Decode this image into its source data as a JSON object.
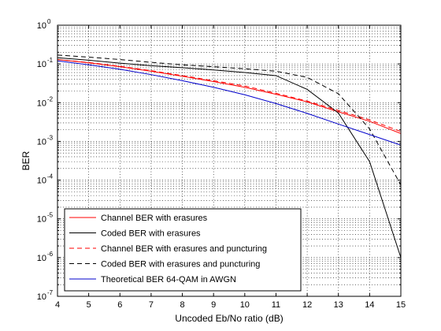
{
  "chart_data": {
    "type": "line",
    "title": "",
    "xlabel": "Uncoded Eb/No ratio (dB)",
    "ylabel": "BER",
    "xlim": [
      4,
      15
    ],
    "ylim_log10": [
      -7,
      0
    ],
    "yscale": "log",
    "grid": true,
    "legend_position": "bottom-left",
    "x_ticks": [
      "4",
      "5",
      "6",
      "7",
      "8",
      "9",
      "10",
      "11",
      "12",
      "13",
      "14",
      "15"
    ],
    "y_ticks": [
      {
        "base": "10",
        "exp": "0",
        "value": 1
      },
      {
        "base": "10",
        "exp": "-1",
        "value": 0.1
      },
      {
        "base": "10",
        "exp": "-2",
        "value": 0.01
      },
      {
        "base": "10",
        "exp": "-3",
        "value": 0.001
      },
      {
        "base": "10",
        "exp": "-4",
        "value": 0.0001
      },
      {
        "base": "10",
        "exp": "-5",
        "value": 1e-05
      },
      {
        "base": "10",
        "exp": "-6",
        "value": 1e-06
      },
      {
        "base": "10",
        "exp": "-7",
        "value": 1e-07
      }
    ],
    "x": [
      4,
      5,
      6,
      7,
      8,
      9,
      10,
      11,
      12,
      13,
      14,
      15
    ],
    "series": [
      {
        "name": "Channel BER with erasures",
        "color": "#ff0000",
        "dash": "solid",
        "values": [
          0.13,
          0.107,
          0.085,
          0.065,
          0.048,
          0.035,
          0.025,
          0.0165,
          0.0105,
          0.0058,
          0.0033,
          0.0016
        ]
      },
      {
        "name": "Coded BER with erasures",
        "color": "#000000",
        "dash": "solid",
        "values": [
          0.145,
          0.125,
          0.105,
          0.09,
          0.08,
          0.07,
          0.06,
          0.05,
          0.022,
          0.0054,
          0.0003,
          1e-06
        ]
      },
      {
        "name": "Channel BER with erasures and puncturing",
        "color": "#ff0000",
        "dash": "dashed",
        "values": [
          0.13,
          0.109,
          0.087,
          0.067,
          0.05,
          0.037,
          0.027,
          0.0175,
          0.011,
          0.0063,
          0.0036,
          0.0018
        ]
      },
      {
        "name": "Coded BER with erasures and puncturing",
        "color": "#000000",
        "dash": "dashed",
        "values": [
          0.17,
          0.15,
          0.13,
          0.11,
          0.095,
          0.085,
          0.075,
          0.065,
          0.045,
          0.017,
          0.0021,
          7.5e-05
        ]
      },
      {
        "name": "Theoretical BER 64-QAM in AWGN",
        "color": "#0000cc",
        "dash": "solid",
        "values": [
          0.12,
          0.095,
          0.073,
          0.053,
          0.037,
          0.025,
          0.016,
          0.0095,
          0.0053,
          0.0028,
          0.0015,
          0.0008
        ]
      }
    ]
  }
}
